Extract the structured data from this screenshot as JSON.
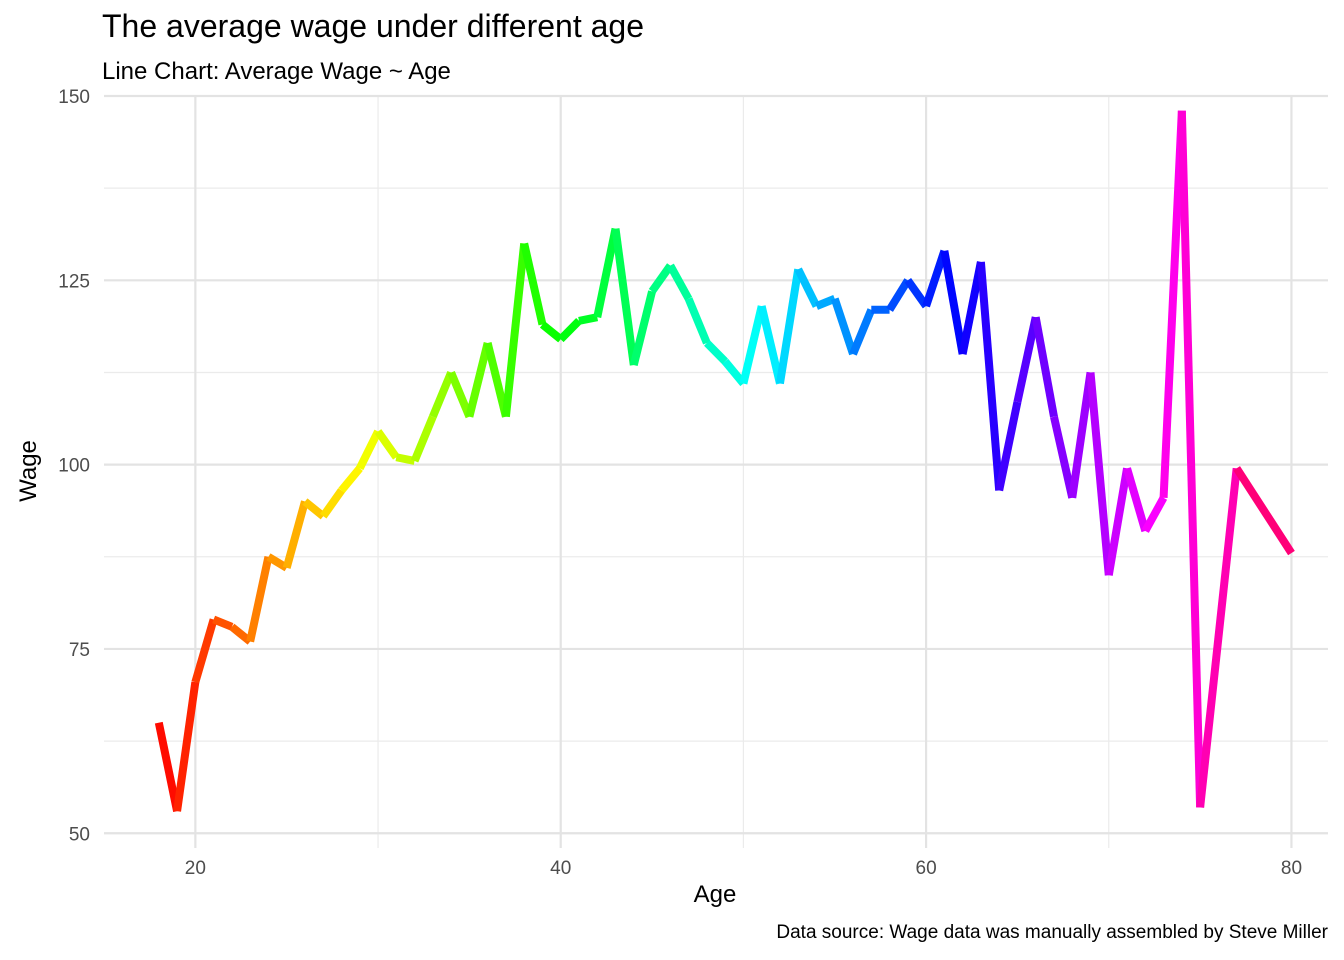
{
  "chart_data": {
    "type": "line",
    "title": "The average wage under different age",
    "subtitle": "Line Chart: Average Wage ~ Age",
    "caption": "Data source: Wage data was manually assembled by Steve Miller",
    "xlabel": "Age",
    "ylabel": "Wage",
    "xlim": [
      15,
      82
    ],
    "ylim": [
      48,
      150
    ],
    "xticks": [
      20,
      40,
      60,
      80
    ],
    "yticks": [
      50,
      75,
      100,
      125,
      150
    ],
    "grid": true,
    "legend": "none",
    "color_scale": "rainbow by age",
    "x": [
      18,
      19,
      20,
      21,
      22,
      23,
      24,
      25,
      26,
      27,
      28,
      29,
      30,
      31,
      32,
      33,
      34,
      35,
      36,
      37,
      38,
      39,
      40,
      41,
      42,
      43,
      44,
      45,
      46,
      47,
      48,
      49,
      50,
      51,
      52,
      53,
      54,
      55,
      56,
      57,
      58,
      59,
      60,
      61,
      62,
      63,
      64,
      65,
      66,
      67,
      68,
      69,
      70,
      71,
      72,
      73,
      74,
      75,
      77,
      80
    ],
    "y": [
      65,
      53,
      70.5,
      79,
      78,
      76,
      87.5,
      86,
      95,
      93,
      96.5,
      99.5,
      104.5,
      101,
      100.5,
      106.5,
      112.5,
      106.5,
      116.5,
      106.5,
      130,
      119,
      117,
      119.5,
      120,
      132,
      113.5,
      123.5,
      127,
      122.5,
      116.5,
      114,
      111,
      121.5,
      111,
      126.5,
      121.5,
      122.5,
      115,
      121,
      121,
      125,
      121.5,
      129,
      115,
      127.5,
      96.5,
      108.5,
      120,
      106.5,
      95.5,
      112.5,
      85,
      99.5,
      91,
      95.5,
      148,
      53.5,
      99.5,
      88
    ]
  }
}
